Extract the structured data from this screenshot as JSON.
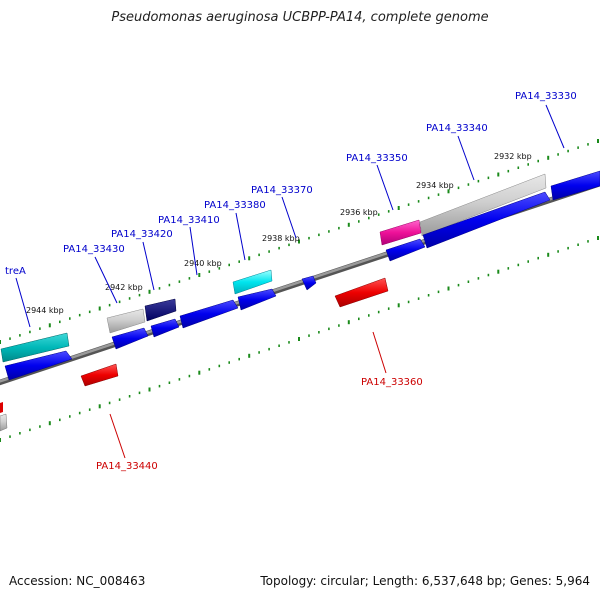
{
  "title": "Pseudomonas aeruginosa UCBPP-PA14, complete genome",
  "footer": {
    "accession": "Accession: NC_008463",
    "topology": "Topology: circular; Length: 6,537,648 bp; Genes: 5,964"
  },
  "colors": {
    "ruler_tick": "#1a8a1a",
    "backbone": "#7a7a7a",
    "forward_label": "#0000cc",
    "reverse_label": "#cc0000"
  },
  "ruler_labels": [
    "2932 kbp",
    "2934 kbp",
    "2936 kbp",
    "2938 kbp",
    "2940 kbp",
    "2942 kbp",
    "2944 kbp"
  ],
  "gene_labels": [
    {
      "text": "PA14_33330",
      "strand": "forward"
    },
    {
      "text": "PA14_33340",
      "strand": "forward"
    },
    {
      "text": "PA14_33350",
      "strand": "forward"
    },
    {
      "text": "PA14_33370",
      "strand": "forward"
    },
    {
      "text": "PA14_33380",
      "strand": "forward"
    },
    {
      "text": "PA14_33410",
      "strand": "forward"
    },
    {
      "text": "PA14_33420",
      "strand": "forward"
    },
    {
      "text": "PA14_33430",
      "strand": "forward"
    },
    {
      "text": "treA",
      "strand": "forward"
    },
    {
      "text": "PA14_33360",
      "strand": "reverse"
    },
    {
      "text": "PA14_33440",
      "strand": "reverse"
    }
  ]
}
